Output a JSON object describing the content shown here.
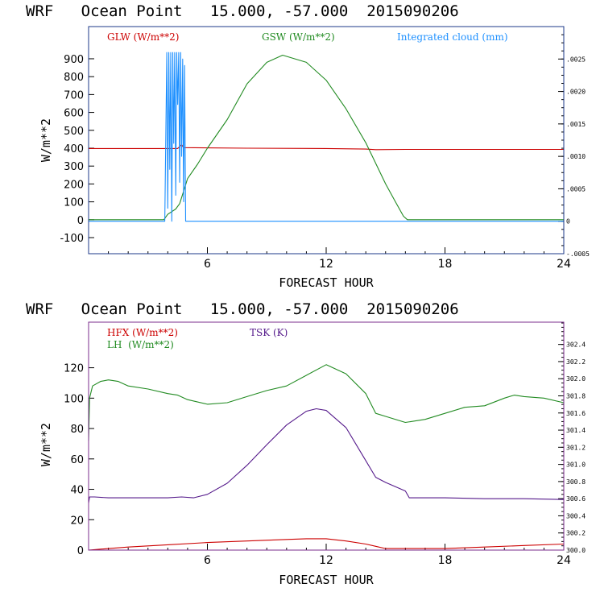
{
  "chart_data": [
    {
      "type": "line",
      "title": "WRF   Ocean Point   15.000, -57.000  2015090206",
      "xlabel": "FORECAST HOUR",
      "ylabel": "W/m**2",
      "xlim": [
        0,
        24
      ],
      "ylim": [
        -190,
        1080
      ],
      "x_ticks": [
        6,
        12,
        18,
        24
      ],
      "y_ticks": [
        -100,
        0,
        100,
        200,
        300,
        400,
        500,
        600,
        700,
        800,
        900
      ],
      "y2lim": [
        -0.0005,
        0.003
      ],
      "y2_ticks": [
        "-.0005",
        "0",
        ".0005",
        ".0010",
        ".0015",
        ".0020",
        ".0025"
      ],
      "y2_tick_values": [
        -0.0005,
        0,
        0.0005,
        0.001,
        0.0015,
        0.002,
        0.0025
      ],
      "legend": [
        {
          "label": "GLW (W/m**2)",
          "color": "#cc0000"
        },
        {
          "label": "GSW (W/m**2)",
          "color": "#228b22"
        },
        {
          "label": "Integrated cloud (mm)",
          "color": "#1e90ff"
        }
      ],
      "series": [
        {
          "name": "GLW (W/m**2)",
          "color": "#cc0000",
          "axis": "left",
          "x": [
            0,
            4.5,
            4.7,
            4.8,
            8,
            12,
            14,
            14.5,
            16,
            20,
            24
          ],
          "y": [
            398,
            398,
            420,
            403,
            400,
            398,
            395,
            392,
            393,
            393,
            393
          ]
        },
        {
          "name": "GSW (W/m**2)",
          "color": "#228b22",
          "axis": "left",
          "x": [
            0,
            3.8,
            4.0,
            4.4,
            4.6,
            4.8,
            5.0,
            5.5,
            6,
            7,
            8,
            9,
            9.8,
            11,
            12,
            13,
            14,
            15,
            15.5,
            15.9,
            16.1,
            24
          ],
          "y": [
            0,
            0,
            30,
            60,
            90,
            160,
            230,
            310,
            400,
            560,
            760,
            880,
            920,
            880,
            780,
            620,
            430,
            200,
            100,
            20,
            0,
            0
          ]
        },
        {
          "name": "Integrated cloud (mm)",
          "color": "#1e90ff",
          "axis": "right",
          "x": [
            0,
            3.85,
            3.95,
            4.0,
            4.05,
            4.1,
            4.15,
            4.2,
            4.25,
            4.3,
            4.35,
            4.4,
            4.45,
            4.5,
            4.55,
            4.6,
            4.65,
            4.7,
            4.75,
            4.8,
            4.85,
            4.9,
            5.0,
            24
          ],
          "y": [
            0,
            0,
            0.0026,
            0.0002,
            0.0026,
            0.0008,
            0.0026,
            0.0,
            0.0026,
            0.0012,
            0.0026,
            0.0004,
            0.0026,
            0.0018,
            0.0026,
            0.0006,
            0.0026,
            0.001,
            0.0025,
            0.0003,
            0.0024,
            0,
            0,
            0
          ]
        }
      ]
    },
    {
      "type": "line",
      "title": "WRF   Ocean Point   15.000, -57.000  2015090206",
      "xlabel": "FORECAST HOUR",
      "ylabel": "W/m**2",
      "xlim": [
        0,
        24
      ],
      "ylim": [
        0,
        150
      ],
      "x_ticks": [
        6,
        12,
        18,
        24
      ],
      "y_ticks": [
        0,
        20,
        40,
        60,
        80,
        100,
        120
      ],
      "y2lim": [
        300.0,
        302.66
      ],
      "y2_ticks": [
        "300.0",
        "300.2",
        "300.4",
        "300.6",
        "300.8",
        "301.0",
        "301.2",
        "301.4",
        "301.6",
        "301.8",
        "302.0",
        "302.2",
        "302.4"
      ],
      "y2_tick_values": [
        300.0,
        300.2,
        300.4,
        300.6,
        300.8,
        301.0,
        301.2,
        301.4,
        301.6,
        301.8,
        302.0,
        302.2,
        302.4
      ],
      "legend": [
        {
          "label": "HFX (W/m**2)",
          "color": "#cc0000"
        },
        {
          "label": "LH  (W/m**2)",
          "color": "#228b22"
        },
        {
          "label": "TSK (K)",
          "color": "#551a8b"
        }
      ],
      "series": [
        {
          "name": "HFX (W/m**2)",
          "color": "#cc0000",
          "axis": "left",
          "x": [
            0,
            2,
            4,
            6,
            8,
            10,
            11,
            12,
            13,
            14,
            14.5,
            15,
            16,
            18,
            20,
            22,
            24
          ],
          "y": [
            0,
            2,
            3.5,
            5,
            6,
            7,
            7.5,
            7.5,
            6,
            4,
            2.5,
            1,
            1,
            1,
            2,
            3,
            4
          ]
        },
        {
          "name": "LH  (W/m**2)",
          "color": "#228b22",
          "axis": "left",
          "x": [
            0,
            0.05,
            0.2,
            0.6,
            1,
            1.5,
            2,
            3,
            4,
            4.5,
            5,
            6,
            7,
            8,
            9,
            10,
            11,
            12,
            13,
            14,
            14.5,
            15,
            16,
            17,
            18,
            19,
            20,
            21,
            21.5,
            22,
            23,
            24
          ],
          "y": [
            72,
            100,
            108,
            111,
            112,
            111,
            108,
            106,
            103,
            102,
            99,
            96,
            97,
            101,
            105,
            108,
            115,
            122,
            116,
            103,
            90,
            88,
            84,
            86,
            90,
            94,
            95,
            100,
            102,
            101,
            100,
            97
          ]
        },
        {
          "name": "TSK (K)",
          "color": "#551a8b",
          "axis": "right",
          "x": [
            0,
            0.05,
            0.3,
            1,
            2,
            3,
            4,
            4.7,
            5.3,
            6,
            7,
            8,
            9,
            10,
            11,
            11.5,
            12,
            13,
            13.8,
            14.5,
            15,
            16,
            16.2,
            18,
            20,
            22,
            24
          ],
          "y": [
            300.55,
            300.62,
            300.62,
            300.61,
            300.61,
            300.61,
            300.61,
            300.62,
            300.61,
            300.65,
            300.78,
            300.99,
            301.23,
            301.46,
            301.62,
            301.65,
            301.63,
            301.43,
            301.12,
            300.85,
            300.79,
            300.69,
            300.61,
            300.61,
            300.6,
            300.6,
            300.59
          ]
        }
      ]
    }
  ]
}
